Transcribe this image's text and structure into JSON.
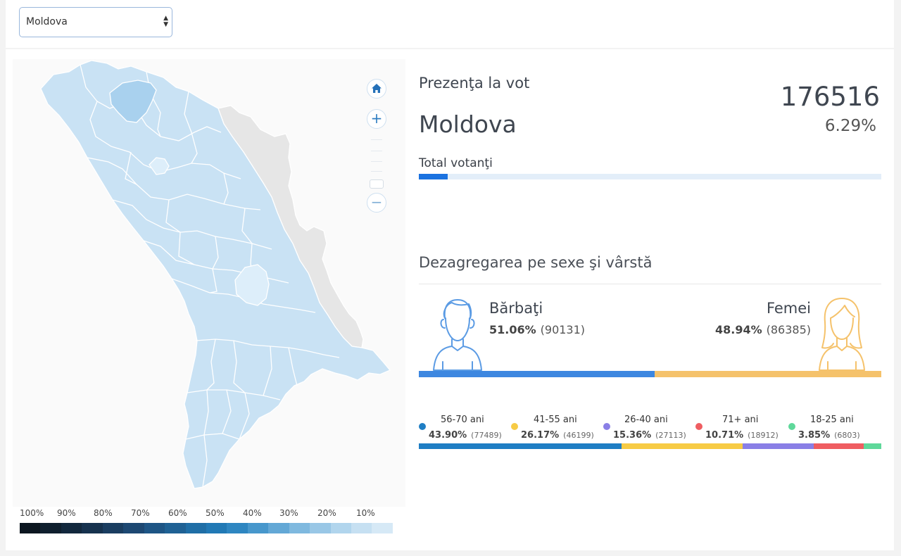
{
  "region_select": {
    "value": "Moldova",
    "options": [
      "Moldova"
    ]
  },
  "map": {
    "controls": {
      "home_icon": "home-icon",
      "zoom_in_icon": "plus-icon",
      "zoom_out_icon": "minus-icon"
    },
    "legend": {
      "labels": [
        "100%",
        "90%",
        "80%",
        "70%",
        "60%",
        "50%",
        "40%",
        "30%",
        "20%",
        "10%"
      ],
      "colors": [
        "#0c1620",
        "#0f1f2e",
        "#12283d",
        "#16324e",
        "#1a3d60",
        "#1d4872",
        "#1e5585",
        "#1f6194",
        "#1f6ea6",
        "#2179b5",
        "#2e86c1",
        "#4797cc",
        "#63a8d6",
        "#7fb9df",
        "#99c7e6",
        "#b1d5ed",
        "#c6e0f2",
        "#d6e9f6"
      ]
    },
    "colors": {
      "region_fill": "#c9e2f4",
      "region_stroke": "#ffffff",
      "highlight_dark": "#a9d1ee",
      "highlight_light": "#ddeefa",
      "transnistria": "#e6e6e6"
    }
  },
  "turnout": {
    "title": "Prezenţa la vot",
    "region": "Moldova",
    "total": "176516",
    "percent": "6.29%",
    "voters_label": "Total votanţi",
    "voters_fraction": 0.0629
  },
  "breakdown": {
    "title": "Dezagregarea pe sexe şi vârstă",
    "male": {
      "label": "Bărbaţi",
      "percent": "51.06%",
      "count": "(90131)",
      "value": 51.06,
      "icon": "man-icon",
      "color": "#3d87e0"
    },
    "female": {
      "label": "Femei",
      "percent": "48.94%",
      "count": "(86385)",
      "value": 48.94,
      "icon": "woman-icon",
      "color": "#f5c26b"
    },
    "age_groups": [
      {
        "name": "56-70 ani",
        "percent": "43.90%",
        "count": "(77489)",
        "value": 43.9,
        "color": "#1f7ec4"
      },
      {
        "name": "41-55 ani",
        "percent": "26.17%",
        "count": "(46199)",
        "value": 26.17,
        "color": "#f7cb45"
      },
      {
        "name": "26-40 ani",
        "percent": "15.36%",
        "count": "(27113)",
        "value": 15.36,
        "color": "#8a7fe6"
      },
      {
        "name": "71+ ani",
        "percent": "10.71%",
        "count": "(18912)",
        "value": 10.71,
        "color": "#ef5d61"
      },
      {
        "name": "18-25 ani",
        "percent": "3.85%",
        "count": "(6803)",
        "value": 3.85,
        "color": "#5fd89a"
      }
    ]
  }
}
